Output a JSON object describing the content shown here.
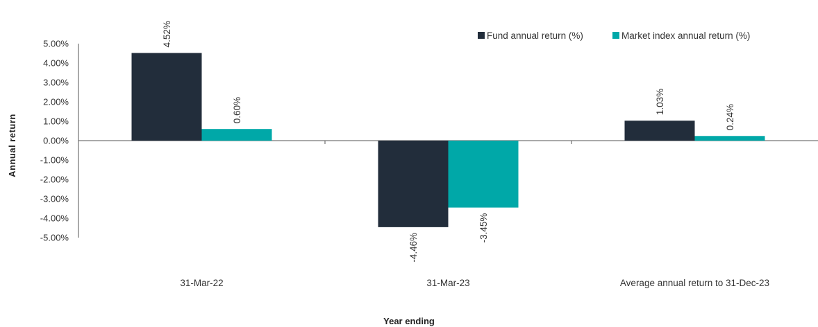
{
  "chart_data": {
    "type": "bar",
    "categories": [
      "31-Mar-22",
      "31-Mar-23",
      "Average annual return to 31-Dec-23"
    ],
    "series": [
      {
        "name": "Fund annual return (%)",
        "values": [
          4.52,
          -4.46,
          1.03
        ],
        "labels": [
          "4.52%",
          "-4.46%",
          "1.03%"
        ],
        "color": "#222d3b"
      },
      {
        "name": "Market index annual return (%)",
        "values": [
          0.6,
          -3.45,
          0.24
        ],
        "labels": [
          "0.60%",
          "-3.45%",
          "0.24%"
        ],
        "color": "#00a8a8"
      }
    ],
    "xlabel": "Year ending",
    "ylabel": "Annual return",
    "ylim": [
      -5,
      5
    ],
    "yticks": [
      5,
      4,
      3,
      2,
      1,
      0,
      -1,
      -2,
      -3,
      -4,
      -5
    ],
    "ytick_labels": [
      "5.00%",
      "4.00%",
      "3.00%",
      "2.00%",
      "1.00%",
      "0.00%",
      "-1.00%",
      "-2.00%",
      "-3.00%",
      "-4.00%",
      "-5.00%"
    ],
    "grid": false,
    "legend_position": "top-right"
  }
}
